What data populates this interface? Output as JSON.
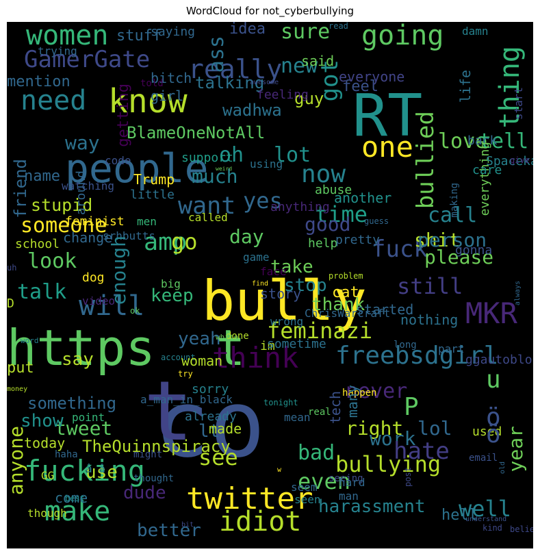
{
  "title": "WordCloud for not_cyberbullying",
  "background": "#000000",
  "words": [
    {
      "text": "co",
      "color": "#3b528b"
    },
    {
      "text": "t",
      "color": "#414487"
    },
    {
      "text": "RT",
      "color": "#21918c"
    },
    {
      "text": "bully",
      "color": "#fde725"
    },
    {
      "text": "https",
      "color": "#5ec962"
    },
    {
      "text": "t",
      "color": "#5ec962"
    },
    {
      "text": "people",
      "color": "#31688e"
    },
    {
      "text": "know",
      "color": "#b5de2b"
    },
    {
      "text": "one",
      "color": "#fde725"
    },
    {
      "text": "really",
      "color": "#3b528b"
    },
    {
      "text": "going",
      "color": "#5ec962"
    },
    {
      "text": "women",
      "color": "#35b779"
    },
    {
      "text": "need",
      "color": "#26828e"
    },
    {
      "text": "GamerGate",
      "color": "#3e4989"
    },
    {
      "text": "sure",
      "color": "#5ec962"
    },
    {
      "text": "ass",
      "color": "#2c728e"
    },
    {
      "text": "new",
      "color": "#26828e"
    },
    {
      "text": "thing",
      "color": "#35b779"
    },
    {
      "text": "think",
      "color": "#440154"
    },
    {
      "text": "MKR",
      "color": "#482878"
    },
    {
      "text": "fucking",
      "color": "#35b779"
    },
    {
      "text": "twitter",
      "color": "#fde725"
    },
    {
      "text": "idiot",
      "color": "#b5de2b"
    },
    {
      "text": "freebsdgirl",
      "color": "#2c728e"
    },
    {
      "text": "feminazi",
      "color": "#b5de2b"
    },
    {
      "text": "bullying",
      "color": "#b5de2b"
    },
    {
      "text": "bullied",
      "color": "#6ece58"
    },
    {
      "text": "love",
      "color": "#6ece58"
    },
    {
      "text": "tell",
      "color": "#35b779"
    },
    {
      "text": "want",
      "color": "#31688e"
    },
    {
      "text": "yes",
      "color": "#31688e"
    },
    {
      "text": "now",
      "color": "#26828e"
    },
    {
      "text": "much",
      "color": "#26828e"
    },
    {
      "text": "oh",
      "color": "#21918c"
    },
    {
      "text": "lot",
      "color": "#21918c"
    },
    {
      "text": "got",
      "color": "#21918c"
    },
    {
      "text": "will",
      "color": "#31688e"
    },
    {
      "text": "amp",
      "color": "#35b779"
    },
    {
      "text": "go",
      "color": "#b5de2b"
    },
    {
      "text": "look",
      "color": "#5ec962"
    },
    {
      "text": "someone",
      "color": "#fde725"
    },
    {
      "text": "stupid",
      "color": "#b5de2b"
    },
    {
      "text": "time",
      "color": "#1f9e89"
    },
    {
      "text": "good",
      "color": "#3e4989"
    },
    {
      "text": "day",
      "color": "#5ec962"
    },
    {
      "text": "fuck",
      "color": "#3b528b"
    },
    {
      "text": "still",
      "color": "#433e85"
    },
    {
      "text": "call",
      "color": "#26828e"
    },
    {
      "text": "shit",
      "color": "#b5de2b"
    },
    {
      "text": "person",
      "color": "#2c728e"
    },
    {
      "text": "please",
      "color": "#6ece58"
    },
    {
      "text": "take",
      "color": "#6ece58"
    },
    {
      "text": "stop",
      "color": "#26828e"
    },
    {
      "text": "thank",
      "color": "#6ece58"
    },
    {
      "text": "keep",
      "color": "#35b779"
    },
    {
      "text": "talk",
      "color": "#1f9e89"
    },
    {
      "text": "never",
      "color": "#482878"
    },
    {
      "text": "say",
      "color": "#b5de2b"
    },
    {
      "text": "yeah",
      "color": "#31688e"
    },
    {
      "text": "something",
      "color": "#31688e"
    },
    {
      "text": "tweet",
      "color": "#5ec962"
    },
    {
      "text": "show",
      "color": "#21918c"
    },
    {
      "text": "right",
      "color": "#b5de2b"
    },
    {
      "text": "lol",
      "color": "#31688e"
    },
    {
      "text": "P",
      "color": "#5ec962"
    },
    {
      "text": "u",
      "color": "#5ec962"
    },
    {
      "text": "lt",
      "color": "#31688e"
    },
    {
      "text": "work",
      "color": "#2c728e"
    },
    {
      "text": "make",
      "color": "#35b779"
    },
    {
      "text": "see",
      "color": "#b5de2b"
    },
    {
      "text": "even",
      "color": "#5ec962"
    },
    {
      "text": "hate",
      "color": "#433e85"
    },
    {
      "text": "well",
      "color": "#26828e"
    },
    {
      "text": "harassment",
      "color": "#26828e"
    },
    {
      "text": "dude",
      "color": "#482878"
    },
    {
      "text": "better",
      "color": "#31688e"
    },
    {
      "text": "use",
      "color": "#b5de2b"
    },
    {
      "text": "bad",
      "color": "#35b779"
    },
    {
      "text": "year",
      "color": "#6ece58"
    },
    {
      "text": "wadhwa",
      "color": "#2c728e"
    },
    {
      "text": "BlameOneNotAll",
      "color": "#5ec962"
    },
    {
      "text": "way",
      "color": "#2c728e"
    },
    {
      "text": "friend",
      "color": "#31688e"
    },
    {
      "text": "name",
      "color": "#31688e"
    },
    {
      "text": "talking",
      "color": "#2c728e"
    },
    {
      "text": "guy",
      "color": "#b5de2b"
    },
    {
      "text": "feel",
      "color": "#3b528b"
    },
    {
      "text": "everyone",
      "color": "#414487"
    },
    {
      "text": "bitch",
      "color": "#31688e"
    },
    {
      "text": "said",
      "color": "#6ece58"
    },
    {
      "text": "idea",
      "color": "#3b528b"
    },
    {
      "text": "stuff",
      "color": "#31688e"
    },
    {
      "text": "trying",
      "color": "#31688e"
    },
    {
      "text": "mention",
      "color": "#31688e"
    },
    {
      "text": "getting",
      "color": "#440154"
    },
    {
      "text": "life",
      "color": "#2c728e"
    },
    {
      "text": "back",
      "color": "#31688e"
    },
    {
      "text": "girl",
      "color": "#31688e"
    },
    {
      "text": "feeling",
      "color": "#482878"
    },
    {
      "text": "damn",
      "color": "#26828e"
    },
    {
      "text": "saying",
      "color": "#31688e"
    },
    {
      "text": "read",
      "color": "#2c728e"
    },
    {
      "text": "told",
      "color": "#440154"
    },
    {
      "text": "awesome",
      "color": "#3e4989"
    },
    {
      "text": "start",
      "color": "#3e4989"
    },
    {
      "text": "everything",
      "color": "#6ece58"
    },
    {
      "text": "Spacekatgal",
      "color": "#26828e"
    },
    {
      "text": "give",
      "color": "#482878"
    },
    {
      "text": "care",
      "color": "#21918c"
    },
    {
      "text": "support",
      "color": "#1f9e89"
    },
    {
      "text": "using",
      "color": "#2c728e"
    },
    {
      "text": "weird",
      "color": "#6ece58"
    },
    {
      "text": "Trump",
      "color": "#fde725"
    },
    {
      "text": "code",
      "color": "#3b528b"
    },
    {
      "text": "around",
      "color": "#31688e"
    },
    {
      "text": "watching",
      "color": "#3b528b"
    },
    {
      "text": "little",
      "color": "#2c728e"
    },
    {
      "text": "anything",
      "color": "#482878"
    },
    {
      "text": "abuse",
      "color": "#5ec962"
    },
    {
      "text": "another",
      "color": "#21918c"
    },
    {
      "text": "making",
      "color": "#31688e"
    },
    {
      "text": "gonna",
      "color": "#3b528b"
    },
    {
      "text": "feminist",
      "color": "#fde725"
    },
    {
      "text": "called",
      "color": "#b5de2b"
    },
    {
      "text": "men",
      "color": "#35b779"
    },
    {
      "text": "guess",
      "color": "#31688e"
    },
    {
      "text": "srhbutts",
      "color": "#31688e"
    },
    {
      "text": "change",
      "color": "#31688e"
    },
    {
      "text": "help",
      "color": "#5ec962"
    },
    {
      "text": "school",
      "color": "#b5de2b"
    },
    {
      "text": "pretty",
      "color": "#31688e"
    },
    {
      "text": "enough",
      "color": "#26828e"
    },
    {
      "text": "game",
      "color": "#2c728e"
    },
    {
      "text": "face",
      "color": "#440154"
    },
    {
      "text": "problem",
      "color": "#b5de2b"
    },
    {
      "text": "dog",
      "color": "#fde725"
    },
    {
      "text": "uh",
      "color": "#3e4989"
    },
    {
      "text": "find",
      "color": "#fde725"
    },
    {
      "text": "big",
      "color": "#5ec962"
    },
    {
      "text": "story",
      "color": "#3b528b"
    },
    {
      "text": "always",
      "color": "#31688e"
    },
    {
      "text": "D",
      "color": "#b5de2b"
    },
    {
      "text": "cat",
      "color": "#fde725"
    },
    {
      "text": "started",
      "color": "#31688e"
    },
    {
      "text": "ChrisWarcraft",
      "color": "#31688e"
    },
    {
      "text": "video",
      "color": "#482878"
    },
    {
      "text": "ok",
      "color": "#5ec962"
    },
    {
      "text": "wrong",
      "color": "#2c728e"
    },
    {
      "text": "nothing",
      "color": "#2c728e"
    },
    {
      "text": "done",
      "color": "#b5de2b"
    },
    {
      "text": "im",
      "color": "#b5de2b"
    },
    {
      "text": "sometime",
      "color": "#2c728e"
    },
    {
      "text": "part",
      "color": "#31688e"
    },
    {
      "text": "white",
      "color": "#6ece58"
    },
    {
      "text": "long",
      "color": "#31688e"
    },
    {
      "text": "account",
      "color": "#26828e"
    },
    {
      "text": "woman",
      "color": "#b5de2b"
    },
    {
      "text": "word",
      "color": "#26828e"
    },
    {
      "text": "try",
      "color": "#fde725"
    },
    {
      "text": "put",
      "color": "#b5de2b"
    },
    {
      "text": "happen",
      "color": "#fde725"
    },
    {
      "text": "ggautoblocker",
      "color": "#3e4989"
    },
    {
      "text": "money",
      "color": "#b5de2b"
    },
    {
      "text": "a_man_in_black",
      "color": "#31688e"
    },
    {
      "text": "tonight",
      "color": "#21918c"
    },
    {
      "text": "tech",
      "color": "#3b528b"
    },
    {
      "text": "mean",
      "color": "#31688e"
    },
    {
      "text": "sorry",
      "color": "#26828e"
    },
    {
      "text": "already",
      "color": "#2c728e"
    },
    {
      "text": "real",
      "color": "#5ec962"
    },
    {
      "text": "point",
      "color": "#35b779"
    },
    {
      "text": "made",
      "color": "#b5de2b"
    },
    {
      "text": "many",
      "color": "#2c728e"
    },
    {
      "text": "used",
      "color": "#b5de2b"
    },
    {
      "text": "today",
      "color": "#b5de2b"
    },
    {
      "text": "TheQuinnspiracy",
      "color": "#b5de2b"
    },
    {
      "text": "anyone",
      "color": "#b5de2b"
    },
    {
      "text": "email",
      "color": "#3b528b"
    },
    {
      "text": "haha",
      "color": "#31688e"
    },
    {
      "text": "might",
      "color": "#3b528b"
    },
    {
      "text": "post",
      "color": "#3e4989"
    },
    {
      "text": "â â",
      "color": "#26828e"
    },
    {
      "text": "w",
      "color": "#fde725"
    },
    {
      "text": "thought",
      "color": "#31688e"
    },
    {
      "text": "GG",
      "color": "#b5de2b"
    },
    {
      "text": "seeing",
      "color": "#3e4989"
    },
    {
      "text": "old",
      "color": "#31688e"
    },
    {
      "text": "come",
      "color": "#2c728e"
    },
    {
      "text": "best",
      "color": "#21918c"
    },
    {
      "text": "man",
      "color": "#31688e"
    },
    {
      "text": "hard",
      "color": "#31688e"
    },
    {
      "text": "seen",
      "color": "#26828e"
    },
    {
      "text": "seem",
      "color": "#31688e"
    },
    {
      "text": "though",
      "color": "#b5de2b"
    },
    {
      "text": "bit",
      "color": "#3e4989"
    },
    {
      "text": "understand",
      "color": "#3b528b"
    },
    {
      "text": "kind",
      "color": "#3e4989"
    },
    {
      "text": "believe",
      "color": "#3e4989"
    },
    {
      "text": "ö",
      "color": "#3b528b"
    },
    {
      "text": "ö",
      "color": "#3b528b"
    },
    {
      "text": "hell",
      "color": "#2c728e"
    }
  ]
}
